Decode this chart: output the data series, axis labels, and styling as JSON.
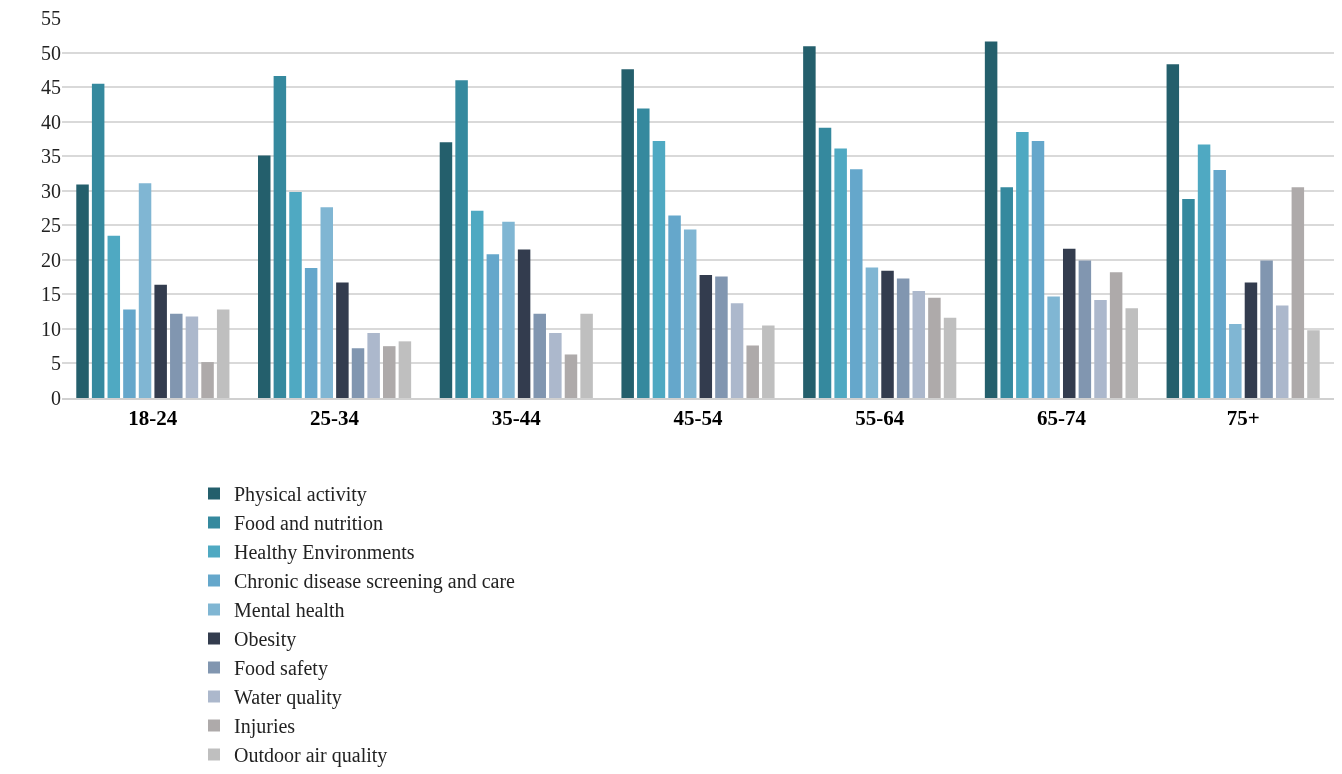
{
  "chart_data": {
    "type": "bar",
    "categories": [
      "18-24",
      "25-34",
      "35-44",
      "45-54",
      "55-64",
      "65-74",
      "75+"
    ],
    "series": [
      {
        "name": "Physical activity",
        "color": "#245f6c",
        "values": [
          30.9,
          35.1,
          37.0,
          47.6,
          50.9,
          51.6,
          48.3
        ]
      },
      {
        "name": "Food and nutrition",
        "color": "#35899e",
        "values": [
          45.5,
          46.6,
          46.0,
          41.9,
          39.1,
          30.5,
          28.8
        ]
      },
      {
        "name": "Healthy Environments",
        "color": "#4fa9c2",
        "values": [
          23.5,
          29.8,
          27.1,
          37.2,
          36.1,
          38.5,
          36.7
        ]
      },
      {
        "name": "Chronic disease screening and care",
        "color": "#65a7cb",
        "values": [
          12.8,
          18.8,
          20.8,
          26.4,
          33.1,
          37.2,
          33.0
        ]
      },
      {
        "name": "Mental health",
        "color": "#80b6d3",
        "values": [
          31.1,
          27.6,
          25.5,
          24.4,
          18.9,
          14.7,
          10.7
        ]
      },
      {
        "name": "Obesity",
        "color": "#333c4e",
        "values": [
          16.4,
          16.7,
          21.5,
          17.8,
          18.4,
          21.6,
          16.7
        ]
      },
      {
        "name": "Food safety",
        "color": "#8196b0",
        "values": [
          12.2,
          7.2,
          12.2,
          17.6,
          17.3,
          19.9,
          19.9
        ]
      },
      {
        "name": "Water quality",
        "color": "#acb8cc",
        "values": [
          11.8,
          9.4,
          9.4,
          13.7,
          15.5,
          14.2,
          13.4
        ]
      },
      {
        "name": "Injuries",
        "color": "#aeaaaa",
        "values": [
          5.2,
          7.5,
          6.3,
          7.6,
          14.5,
          18.2,
          30.5
        ]
      },
      {
        "name": "Outdoor air quality",
        "color": "#bfbfbf",
        "values": [
          12.8,
          8.2,
          12.2,
          10.5,
          11.6,
          13.0,
          9.8
        ]
      }
    ],
    "ylim": [
      0,
      55
    ],
    "yticks": [
      0,
      5,
      10,
      15,
      20,
      25,
      30,
      35,
      40,
      45,
      50,
      55
    ],
    "grid": "y",
    "legend": "bottom"
  }
}
